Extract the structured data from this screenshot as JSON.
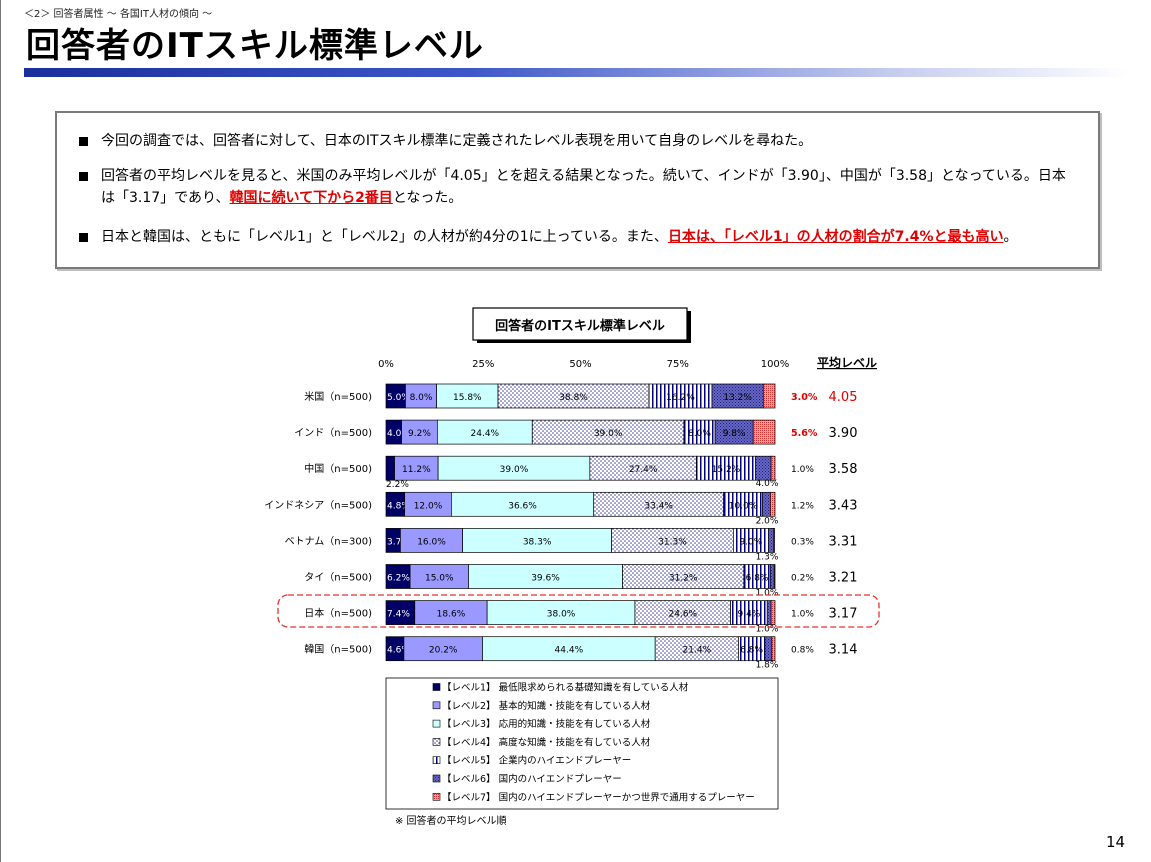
{
  "header": {
    "breadcrumb": "＜2＞ 回答者属性 ～ 各国IT人材の傾向 ～",
    "title": "回答者のITスキル標準レベル"
  },
  "summary": {
    "b1": "今回の調査では、回答者に対して、日本のITスキル標準に定義されたレベル表現を用いて自身のレベルを尋ねた。",
    "b2_pre": "回答者の平均レベルを見ると、米国のみ平均レベルが「4.05」とを超える結果となった。続いて、インドが「3.90」、中国が「3.58」となっている。日本は「3.17」であり、",
    "b2_red": "韓国に続いて下から2番目",
    "b2_post": "となった。",
    "b3_pre": "日本と韓国は、ともに「レベル1」と「レベル2」の人材が約4分の1に上っている。また、",
    "b3_red": "日本は、「レベル1」の人材の割合が7.4%と最も高い",
    "b3_post": "。"
  },
  "chart_data": {
    "type": "bar",
    "title": "回答者のITスキル標準レベル",
    "orientation": "horizontal-stacked-100",
    "x_ticks": [
      "0%",
      "25%",
      "50%",
      "75%",
      "100%"
    ],
    "avg_header": "平均レベル",
    "categories": [
      "米国（n=500)",
      "インド（n=500)",
      "中国（n=500)",
      "インドネシア（n=500)",
      "ベトナム（n=300)",
      "タイ（n=500)",
      "日本（n=500)",
      "韓国（n=500)"
    ],
    "series": [
      {
        "name": "【レベル1】 最低限求められる基礎知識を有している人材",
        "values": [
          5.0,
          4.0,
          2.2,
          4.8,
          3.7,
          6.2,
          7.4,
          4.6
        ],
        "color": "#000066"
      },
      {
        "name": "【レベル2】 基本的知識・技能を有している人材",
        "values": [
          8.0,
          9.2,
          11.2,
          12.0,
          16.0,
          15.0,
          18.6,
          20.2
        ],
        "color": "#9999ff"
      },
      {
        "name": "【レベル3】 応用的知識・技能を有している人材",
        "values": [
          15.8,
          24.4,
          39.0,
          36.6,
          38.3,
          39.6,
          38.0,
          44.4
        ],
        "color": "#ccffff"
      },
      {
        "name": "【レベル4】 高度な知識・技能を有している人材",
        "values": [
          38.8,
          39.0,
          27.4,
          33.4,
          31.3,
          31.2,
          24.6,
          21.4
        ],
        "color": "#ffffff"
      },
      {
        "name": "【レベル5】 企業内のハイエンドプレーヤー",
        "values": [
          16.2,
          8.0,
          15.2,
          10.0,
          9.0,
          6.8,
          9.4,
          6.8
        ],
        "color": "#ffffff"
      },
      {
        "name": "【レベル6】 国内のハイエンドプレーヤー",
        "values": [
          13.2,
          9.8,
          4.0,
          2.0,
          1.3,
          1.0,
          1.0,
          1.8
        ],
        "color": "#6666cc"
      },
      {
        "name": "【レベル7】 国内のハイエンドプレーヤーかつ世界で通用するプレーヤー",
        "values": [
          3.0,
          5.6,
          1.0,
          1.2,
          0.3,
          0.2,
          1.0,
          0.8
        ],
        "color": "#ff9999"
      }
    ],
    "labels": [
      [
        "5.0%",
        "8.0%",
        "15.8%",
        "38.8%",
        "16.2%",
        "13.2%",
        "3.0%"
      ],
      [
        "4.0%",
        "9.2%",
        "24.4%",
        "39.0%",
        "8.0%",
        "9.8%",
        "5.6%"
      ],
      [
        "2.2%",
        "11.2%",
        "39.0%",
        "27.4%",
        "15.2%",
        "4.0%",
        "1.0%"
      ],
      [
        "4.8%",
        "12.0%",
        "36.6%",
        "33.4%",
        "10.0%",
        "2.0%",
        "1.2%"
      ],
      [
        "3.7%",
        "16.0%",
        "38.3%",
        "31.3%",
        "9.0%",
        "1.3%",
        "0.3%"
      ],
      [
        "6.2%",
        "15.0%",
        "39.6%",
        "31.2%",
        "6.8%",
        "1.0%",
        "0.2%"
      ],
      [
        "7.4%",
        "18.6%",
        "38.0%",
        "24.6%",
        "9.4%",
        "1.0%",
        "1.0%"
      ],
      [
        "4.6%",
        "20.2%",
        "44.4%",
        "21.4%",
        "6.8%",
        "1.8%",
        "0.8%"
      ]
    ],
    "average_levels": [
      "4.05",
      "3.90",
      "3.58",
      "3.43",
      "3.31",
      "3.21",
      "3.17",
      "3.14"
    ],
    "highlight_category": "日本（n=500)",
    "note": "※ 回答者の平均レベル順"
  },
  "page_number": "14"
}
